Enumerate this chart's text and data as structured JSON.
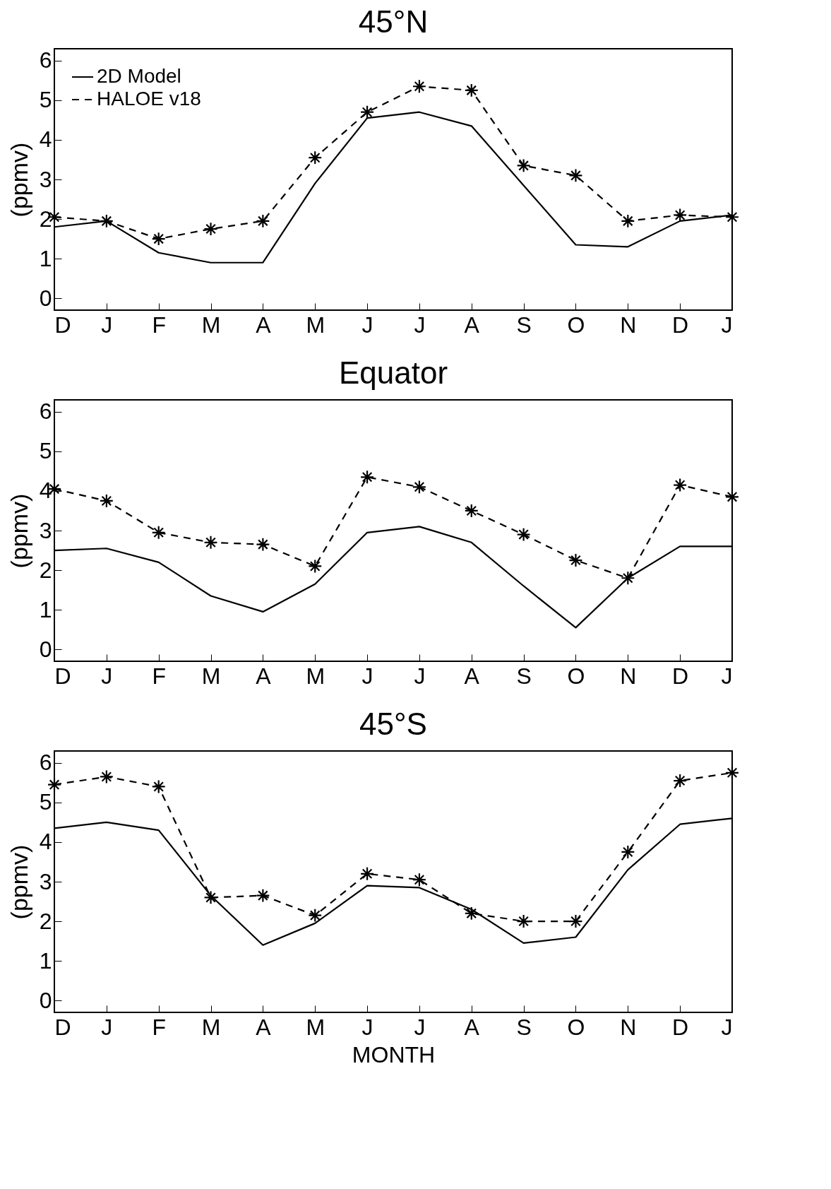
{
  "chart_data": [
    {
      "type": "line",
      "title": "45°N",
      "ylabel": "(ppmv)",
      "categories": [
        "D",
        "J",
        "F",
        "M",
        "A",
        "M",
        "J",
        "J",
        "A",
        "S",
        "O",
        "N",
        "D",
        "J"
      ],
      "ylim": [
        -0.3,
        6.3
      ],
      "yticks": [
        0,
        1,
        2,
        3,
        4,
        5,
        6
      ],
      "legend": "top left",
      "series": [
        {
          "name": "2D Model",
          "color": "#000000",
          "line_style": "solid",
          "marker": "none",
          "values": [
            1.8,
            1.95,
            1.15,
            0.9,
            0.9,
            2.9,
            4.55,
            4.7,
            4.35,
            2.85,
            1.35,
            1.3,
            1.95,
            2.1
          ]
        },
        {
          "name": "HALOE v18",
          "color": "#000000",
          "line_style": "dashed",
          "marker": "cross",
          "values": [
            2.05,
            1.95,
            1.5,
            1.75,
            1.95,
            3.55,
            4.7,
            5.35,
            5.25,
            3.35,
            3.1,
            1.95,
            2.1,
            2.05
          ]
        }
      ]
    },
    {
      "type": "line",
      "title": "Equator",
      "ylabel": "(ppmv)",
      "categories": [
        "D",
        "J",
        "F",
        "M",
        "A",
        "M",
        "J",
        "J",
        "A",
        "S",
        "O",
        "N",
        "D",
        "J"
      ],
      "ylim": [
        -0.3,
        6.3
      ],
      "yticks": [
        0,
        1,
        2,
        3,
        4,
        5,
        6
      ],
      "series": [
        {
          "color": "#000000",
          "line_style": "solid",
          "marker": "none",
          "values": [
            2.5,
            2.55,
            2.2,
            1.35,
            0.95,
            1.65,
            2.95,
            3.1,
            2.7,
            1.6,
            0.55,
            1.8,
            2.6,
            2.6
          ]
        },
        {
          "color": "#000000",
          "line_style": "dashed",
          "marker": "cross",
          "values": [
            4.05,
            3.75,
            2.95,
            2.7,
            2.65,
            2.1,
            4.35,
            4.1,
            3.5,
            2.9,
            2.25,
            1.8,
            4.15,
            3.85
          ]
        }
      ]
    },
    {
      "type": "line",
      "title": "45°S",
      "ylabel": "(ppmv)",
      "xlabel": "MONTH",
      "categories": [
        "D",
        "J",
        "F",
        "M",
        "A",
        "M",
        "J",
        "J",
        "A",
        "S",
        "O",
        "N",
        "D",
        "J"
      ],
      "ylim": [
        -0.3,
        6.3
      ],
      "yticks": [
        0,
        1,
        2,
        3,
        4,
        5,
        6
      ],
      "series": [
        {
          "color": "#000000",
          "line_style": "solid",
          "marker": "none",
          "values": [
            4.35,
            4.5,
            4.3,
            2.65,
            1.4,
            1.95,
            2.9,
            2.85,
            2.3,
            1.45,
            1.6,
            3.3,
            4.45,
            4.6
          ]
        },
        {
          "color": "#000000",
          "line_style": "dashed",
          "marker": "cross",
          "values": [
            5.45,
            5.65,
            5.4,
            2.6,
            2.65,
            2.15,
            3.2,
            3.05,
            2.2,
            2.0,
            2.0,
            3.75,
            5.55,
            5.75
          ]
        }
      ]
    }
  ]
}
